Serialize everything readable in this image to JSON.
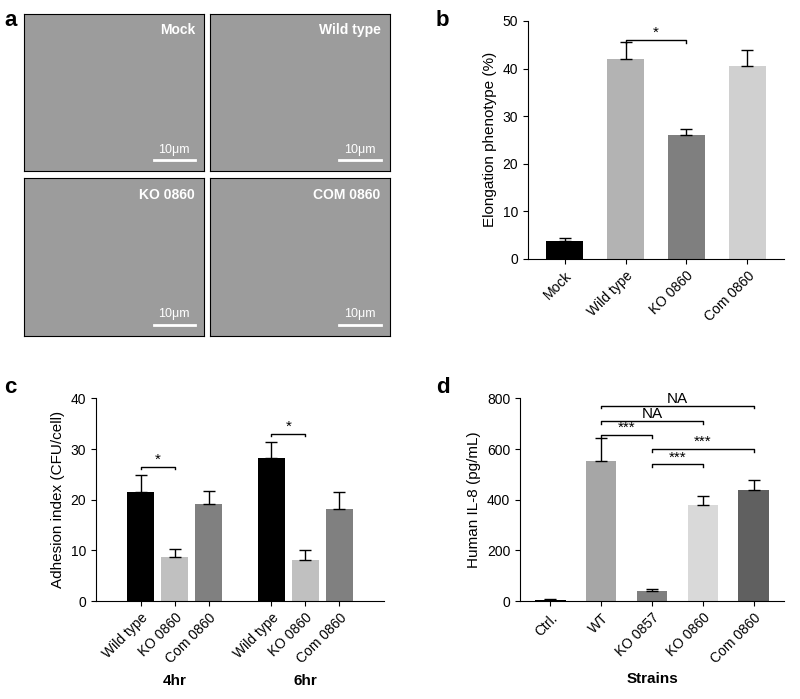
{
  "images": {
    "label": "a",
    "panels": [
      {
        "name": "Mock",
        "scale_bar": "10μm"
      },
      {
        "name": "Wild type",
        "scale_bar": "10μm"
      },
      {
        "name": "KO 0860",
        "scale_bar": "10μm"
      },
      {
        "name": "COM 0860",
        "scale_bar": "10μm"
      }
    ]
  },
  "chart_data": [
    {
      "label": "b",
      "type": "bar",
      "categories": [
        "Mock",
        "Wild type",
        "KO 0860",
        "Com 0860"
      ],
      "values": [
        3.7,
        42,
        26,
        40.5
      ],
      "errors": [
        0.7,
        3.5,
        1.2,
        3.3
      ],
      "colors": [
        "#000000",
        "#b3b3b3",
        "#7f7f7f",
        "#d0d0d0"
      ],
      "y_label": "Elongation phenotype (%)",
      "ylim": [
        0,
        50
      ],
      "yticks": [
        0,
        10,
        20,
        30,
        40,
        50
      ],
      "annotations": [
        {
          "between": [
            "Wild type",
            "KO 0860"
          ],
          "text": "*",
          "y": 46
        }
      ]
    },
    {
      "label": "c",
      "type": "bar",
      "categories": [
        "4hr",
        "6hr"
      ],
      "series": [
        {
          "name": "Wild type",
          "color": "#000000",
          "values": [
            21.5,
            28.2
          ],
          "errors": [
            3.3,
            3.3
          ]
        },
        {
          "name": "KO 0860",
          "color": "#c0c0c0",
          "values": [
            8.8,
            8.2
          ],
          "errors": [
            1.4,
            1.8
          ]
        },
        {
          "name": "Com 0860",
          "color": "#808080",
          "values": [
            19.2,
            18.2
          ],
          "errors": [
            2.5,
            3.4
          ]
        }
      ],
      "y_label": "Adhesion index (CFU/cell)",
      "ylim": [
        0,
        40
      ],
      "yticks": [
        0,
        10,
        20,
        30,
        40
      ],
      "annotations": [
        {
          "group": "4hr",
          "between": [
            "Wild type",
            "KO 0860"
          ],
          "text": "*",
          "y": 26.5
        },
        {
          "group": "6hr",
          "between": [
            "Wild type",
            "KO 0860"
          ],
          "text": "*",
          "y": 33
        }
      ]
    },
    {
      "label": "d",
      "type": "bar",
      "categories": [
        "Ctrl.",
        "WT",
        "KO 0857",
        "KO 0860",
        "Com 0860"
      ],
      "values": [
        5,
        555,
        40,
        378,
        440
      ],
      "errors": [
        2,
        90,
        8,
        35,
        40
      ],
      "colors": [
        "#000000",
        "#a6a6a6",
        "#7f7f7f",
        "#d9d9d9",
        "#606060"
      ],
      "x_label": "Strains",
      "y_label": "Human IL-8 (pg/mL)",
      "ylim": [
        0,
        800
      ],
      "yticks": [
        0,
        200,
        400,
        600,
        800
      ],
      "annotations": [
        {
          "between": [
            "WT",
            "Com 0860"
          ],
          "text": "NA",
          "y": 770
        },
        {
          "between": [
            "WT",
            "KO 0860"
          ],
          "text": "NA",
          "y": 710
        },
        {
          "between": [
            "WT",
            "KO 0857"
          ],
          "text": "***",
          "y": 655
        },
        {
          "between": [
            "KO 0857",
            "Com 0860"
          ],
          "text": "***",
          "y": 600
        },
        {
          "between": [
            "KO 0857",
            "KO 0860"
          ],
          "text": "***",
          "y": 540
        }
      ]
    }
  ]
}
